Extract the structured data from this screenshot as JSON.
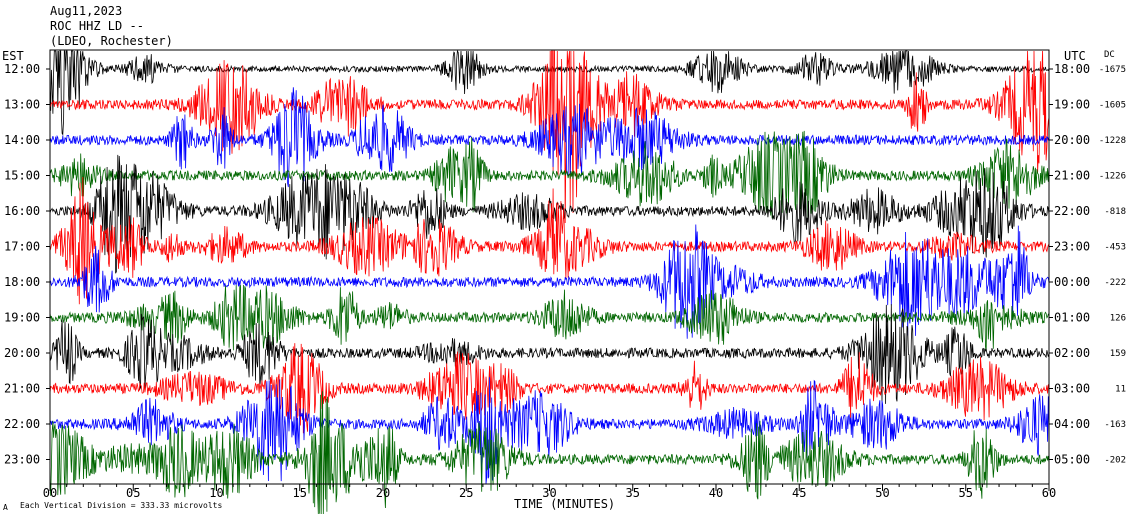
{
  "header": {
    "date": "Aug11,2023",
    "station": "ROC HHZ LD --",
    "network": "(LDEO, Rochester)"
  },
  "left_axis_label": "EST",
  "right_axis_label": "UTC",
  "dc_label": "DC",
  "footer_note": "Each Vertical Division = 333.33 microvolts",
  "chart_data": {
    "type": "line",
    "xlabel": "TIME (MINUTES)",
    "xlim": [
      0,
      60
    ],
    "x_ticks": [
      "00",
      "05",
      "10",
      "15",
      "20",
      "25",
      "30",
      "35",
      "40",
      "45",
      "50",
      "55",
      "60"
    ],
    "trace_colors": [
      "#000000",
      "#ff0000",
      "#0000ff",
      "#006600"
    ],
    "rows": [
      {
        "est": "12:00",
        "utc": "18:00",
        "dc": "-1675"
      },
      {
        "est": "13:00",
        "utc": "19:00",
        "dc": "-1605"
      },
      {
        "est": "14:00",
        "utc": "20:00",
        "dc": "-1228"
      },
      {
        "est": "15:00",
        "utc": "21:00",
        "dc": "-1226"
      },
      {
        "est": "16:00",
        "utc": "22:00",
        "dc": "-818"
      },
      {
        "est": "17:00",
        "utc": "23:00",
        "dc": "-453"
      },
      {
        "est": "18:00",
        "utc": "00:00",
        "dc": "-222"
      },
      {
        "est": "19:00",
        "utc": "01:00",
        "dc": "126"
      },
      {
        "est": "20:00",
        "utc": "02:00",
        "dc": "159"
      },
      {
        "est": "21:00",
        "utc": "03:00",
        "dc": "11"
      },
      {
        "est": "22:00",
        "utc": "04:00",
        "dc": "-163"
      },
      {
        "est": "23:00",
        "utc": "05:00",
        "dc": "-202"
      }
    ]
  }
}
